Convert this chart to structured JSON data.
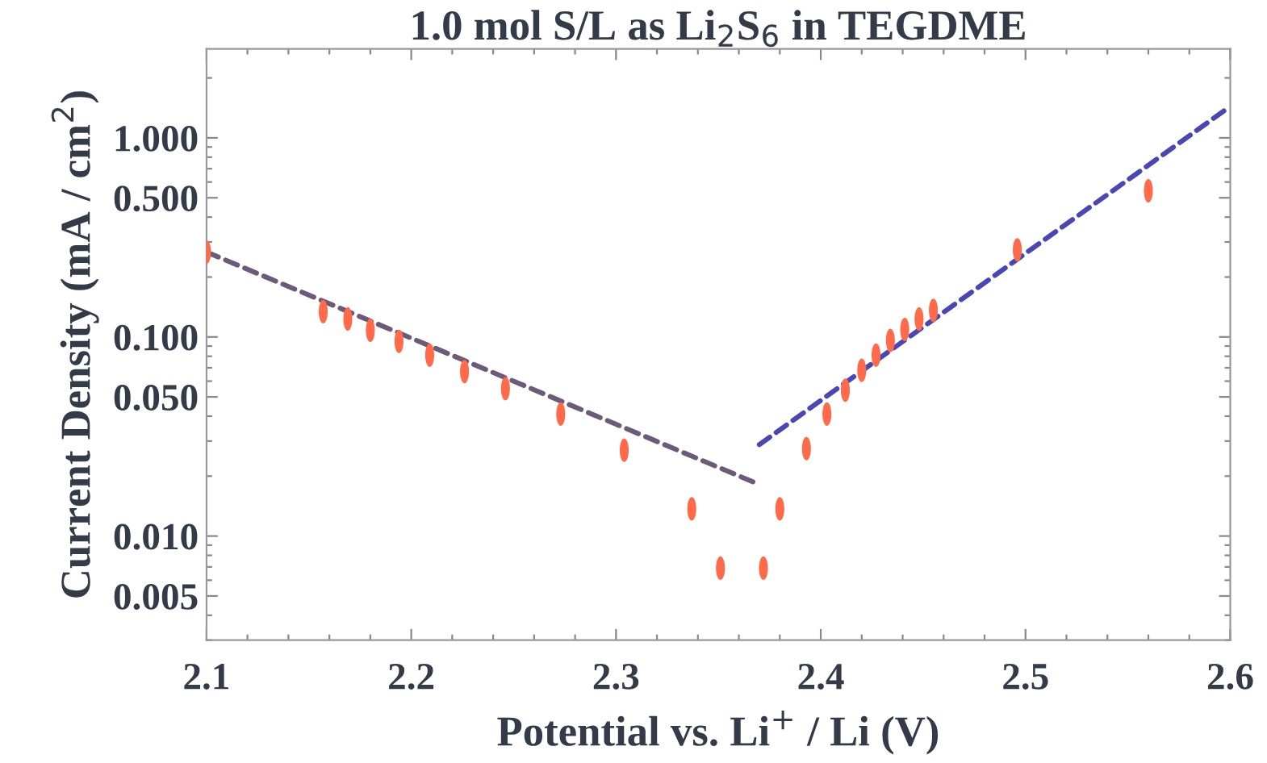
{
  "chart_data": {
    "type": "scatter",
    "title": "1.0 mol S/L as Li$_{2}$S$_{6}$ in TEGDME",
    "xlabel": "Potential vs. Li$^{+}$ / Li (V)",
    "ylabel": "Current Density (mA / cm$^{2}$)",
    "log": "y",
    "xlim": [
      2.1,
      2.6
    ],
    "xticks": [
      {
        "value": 2.1,
        "label": "2.1"
      },
      {
        "value": 2.2,
        "label": "2.2"
      },
      {
        "value": 2.3,
        "label": "2.3"
      },
      {
        "value": 2.4,
        "label": "2.4"
      },
      {
        "value": 2.5,
        "label": "2.5"
      },
      {
        "value": 2.6,
        "label": "2.6"
      }
    ],
    "ylim": [
      0.003,
      2.8
    ],
    "yticks": [
      {
        "value": 0.005,
        "label": "0.005"
      },
      {
        "value": 0.01,
        "label": "0.010"
      },
      {
        "value": 0.05,
        "label": "0.050"
      },
      {
        "value": 0.1,
        "label": "0.100"
      },
      {
        "value": 0.5,
        "label": "0.500"
      },
      {
        "value": 1,
        "label": "1.000"
      }
    ],
    "grid": false,
    "series": [
      {
        "marker": "circle",
        "color": "#ff6a4a",
        "x": [
          2.1,
          2.157,
          2.169,
          2.18,
          2.194,
          2.209,
          2.226,
          2.246,
          2.273,
          2.304,
          2.337,
          2.351,
          2.372,
          2.38,
          2.393,
          2.403,
          2.412,
          2.42,
          2.427,
          2.434,
          2.441,
          2.448,
          2.455,
          2.496,
          2.56
        ],
        "values": [
          0.267,
          0.134,
          0.123,
          0.108,
          0.095,
          0.081,
          0.067,
          0.055,
          0.041,
          0.027,
          0.0137,
          0.0069,
          0.0069,
          0.0137,
          0.0275,
          0.041,
          0.054,
          0.068,
          0.081,
          0.096,
          0.109,
          0.123,
          0.136,
          0.274,
          0.542
        ]
      },
      {
        "type": "line",
        "color": "#6b5a78",
        "line_style": "dashed",
        "x": [
          2.1,
          2.367
        ],
        "values": [
          0.267,
          0.0187
        ]
      },
      {
        "type": "line",
        "color": "#4a48b0",
        "line_style": "dashed",
        "x": [
          2.37,
          2.6
        ],
        "values": [
          0.0288,
          1.44
        ]
      }
    ]
  }
}
